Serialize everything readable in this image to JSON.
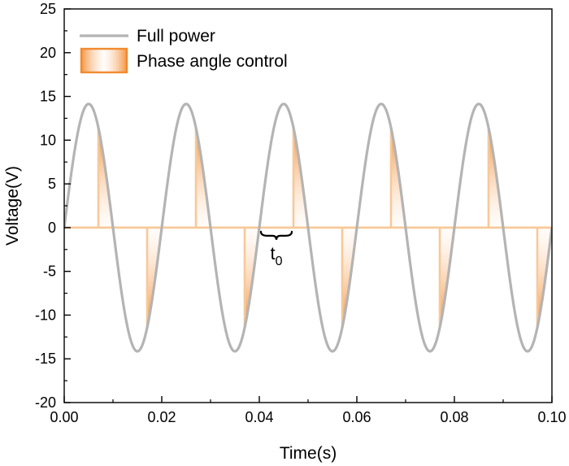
{
  "chart_data": {
    "type": "line",
    "title": "",
    "xlabel": "Time(s)",
    "ylabel": "Voltage(V)",
    "xlim": [
      0,
      0.1
    ],
    "ylim": [
      -20,
      25
    ],
    "x_ticks": [
      "0.00",
      "0.02",
      "0.04",
      "0.06",
      "0.08",
      "0.10"
    ],
    "y_ticks": [
      "-20",
      "-15",
      "-10",
      "-5",
      "0",
      "5",
      "10",
      "15",
      "20",
      "25"
    ],
    "grid": false,
    "legend_position": "top-left",
    "series": [
      {
        "name": "Full power",
        "kind": "sine",
        "amplitude": 14.14,
        "frequency_hz": 50,
        "color": "#b4b4b4"
      },
      {
        "name": "Phase angle control",
        "kind": "phase-cut-sine",
        "amplitude": 14.14,
        "frequency_hz": 50,
        "firing_delay_s": 0.007,
        "color": "#f28a2e",
        "baseline_color": "#f7c999"
      }
    ],
    "annotations": [
      {
        "text": "t",
        "subscript": "0",
        "x_start": 0.04,
        "x_end": 0.047,
        "y": 0
      }
    ]
  }
}
